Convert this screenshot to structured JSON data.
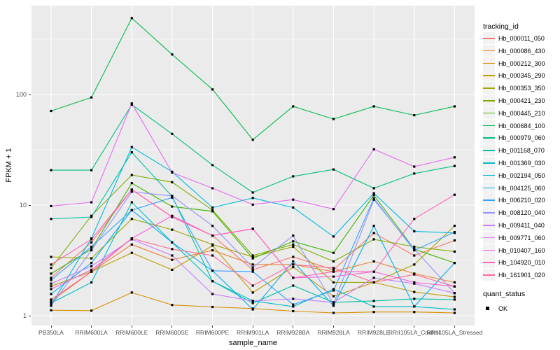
{
  "figure": {
    "x_axis_title": "sample_name",
    "y_axis_title": "FPKM + 1"
  },
  "legend": {
    "tracking_title": "tracking_id",
    "quant_title": "quant_status",
    "quant_items": [
      {
        "label": "OK",
        "marker": "black-square"
      }
    ]
  },
  "colors": {
    "panel_background": "#EBEBEB",
    "gridline": "#FFFFFF",
    "axis_text": "#4D4D4D",
    "marker": "#000000",
    "legend_key_background": "#F2F2F2"
  },
  "chart_data": {
    "type": "line",
    "title": "",
    "xlabel": "sample_name",
    "ylabel": "FPKM + 1",
    "y_scale": "log10",
    "y_ticks": [
      1,
      10,
      100
    ],
    "ylim": [
      0.95,
      620
    ],
    "grid": "white major+minor on gray panel",
    "legend_position": "right",
    "point_marker": "small black square at every data point (quant_status = OK)",
    "x_categories": [
      "PB350LA",
      "RRIM600LA",
      "RRIM600LE",
      "RRIM600SE",
      "RRIM600PE",
      "RRIM901LA",
      "RRIM928BA",
      "RRIM928LA",
      "RRIM928LE",
      "RRII105LA_Control",
      "RRII105LA_Stressed"
    ],
    "series": [
      {
        "name": "Hb_000011_050",
        "color": "#F8766D",
        "values": [
          2.2,
          4.6,
          13.8,
          7.8,
          5.3,
          2.6,
          3.4,
          2.6,
          5.6,
          3.5,
          4.8
        ]
      },
      {
        "name": "Hb_000086_430",
        "color": "#EA8331",
        "values": [
          1.35,
          2.5,
          4.4,
          3.2,
          3.9,
          2.9,
          2.9,
          2.5,
          3.1,
          2.4,
          2.0
        ]
      },
      {
        "name": "Hb_000212_300",
        "color": "#D89000",
        "values": [
          1.12,
          1.11,
          1.62,
          1.25,
          1.2,
          1.16,
          1.1,
          1.06,
          1.08,
          1.08,
          1.06
        ]
      },
      {
        "name": "Hb_000345_290",
        "color": "#C09B00",
        "values": [
          1.85,
          2.5,
          3.7,
          2.6,
          4.3,
          1.62,
          2.75,
          1.5,
          2.0,
          1.64,
          1.48
        ]
      },
      {
        "name": "Hb_000353_350",
        "color": "#A3A500",
        "values": [
          3.4,
          3.3,
          7.5,
          6.0,
          4.4,
          3.4,
          4.2,
          2.0,
          2.0,
          2.9,
          6.5
        ]
      },
      {
        "name": "Hb_000421_230",
        "color": "#7CAE00",
        "values": [
          2.7,
          8.0,
          18.7,
          16.1,
          9.0,
          3.5,
          4.4,
          3.1,
          4.9,
          4.2,
          3.8
        ]
      },
      {
        "name": "Hb_000445_210",
        "color": "#39B600",
        "values": [
          2.4,
          4.0,
          15.8,
          9.7,
          8.8,
          3.3,
          4.7,
          3.7,
          12.3,
          4.0,
          3.0
        ]
      },
      {
        "name": "Hb_000684_100",
        "color": "#00BB4E",
        "values": [
          71,
          94,
          490,
          230,
          111,
          39,
          78,
          60,
          78,
          65,
          78
        ]
      },
      {
        "name": "Hb_000979_060",
        "color": "#00BF7D",
        "values": [
          20.7,
          20.7,
          81,
          44,
          23,
          13,
          18.2,
          21,
          14.2,
          19.3,
          22.6
        ]
      },
      {
        "name": "Hb_001168_070",
        "color": "#00C1A3",
        "values": [
          7.5,
          7.8,
          30,
          12,
          2.05,
          1.3,
          1.87,
          1.32,
          1.36,
          1.42,
          1.4
        ]
      },
      {
        "name": "Hb_001369_030",
        "color": "#00BFC4",
        "values": [
          1.3,
          2.0,
          10.6,
          4.6,
          2.05,
          1.36,
          1.21,
          1.74,
          1.21,
          1.21,
          1.14
        ]
      },
      {
        "name": "Hb_002194_050",
        "color": "#00BAE0",
        "values": [
          1.25,
          5.0,
          33.5,
          20,
          9.5,
          11.6,
          9.5,
          5.2,
          12.8,
          5.8,
          5.6
        ]
      },
      {
        "name": "Hb_004125_060",
        "color": "#00B0F6",
        "values": [
          1.57,
          3.0,
          9.0,
          4.6,
          2.55,
          1.14,
          3.1,
          1.23,
          6.5,
          1.21,
          3.0
        ]
      },
      {
        "name": "Hb_006210_020",
        "color": "#35A2FF",
        "values": [
          2.1,
          4.2,
          9.0,
          11.7,
          2.55,
          2.5,
          1.26,
          1.69,
          11.5,
          3.9,
          5.7
        ]
      },
      {
        "name": "Hb_008120_040",
        "color": "#9590FF",
        "values": [
          1.23,
          3.9,
          13.2,
          12.1,
          6.5,
          2.73,
          5.3,
          1.28,
          11.2,
          4.0,
          1.6
        ]
      },
      {
        "name": "Hb_009411_040",
        "color": "#C77CFF",
        "values": [
          1.95,
          2.8,
          4.9,
          3.5,
          1.57,
          1.36,
          1.42,
          1.32,
          2.2,
          1.95,
          1.6
        ]
      },
      {
        "name": "Hb_009771_060",
        "color": "#E76BF3",
        "values": [
          9.8,
          10.6,
          83,
          19.7,
          14.2,
          10.1,
          11.2,
          9.2,
          32,
          22.3,
          27
        ]
      },
      {
        "name": "Hb_010407_160",
        "color": "#FA62DB",
        "values": [
          1.74,
          2.6,
          5.0,
          8.0,
          5.3,
          6.1,
          2.2,
          2.26,
          2.5,
          2.0,
          1.84
        ]
      },
      {
        "name": "Hb_104920_010",
        "color": "#FF62BC",
        "values": [
          2.9,
          4.9,
          13.8,
          7.8,
          5.3,
          6.1,
          2.2,
          2.5,
          2.5,
          7.5,
          12.4
        ]
      },
      {
        "name": "Hb_161901_020",
        "color": "#FF6A98",
        "values": [
          1.4,
          2.5,
          5.0,
          4.0,
          3.5,
          1.87,
          2.9,
          2.7,
          2.0,
          2.36,
          1.84
        ]
      }
    ]
  }
}
